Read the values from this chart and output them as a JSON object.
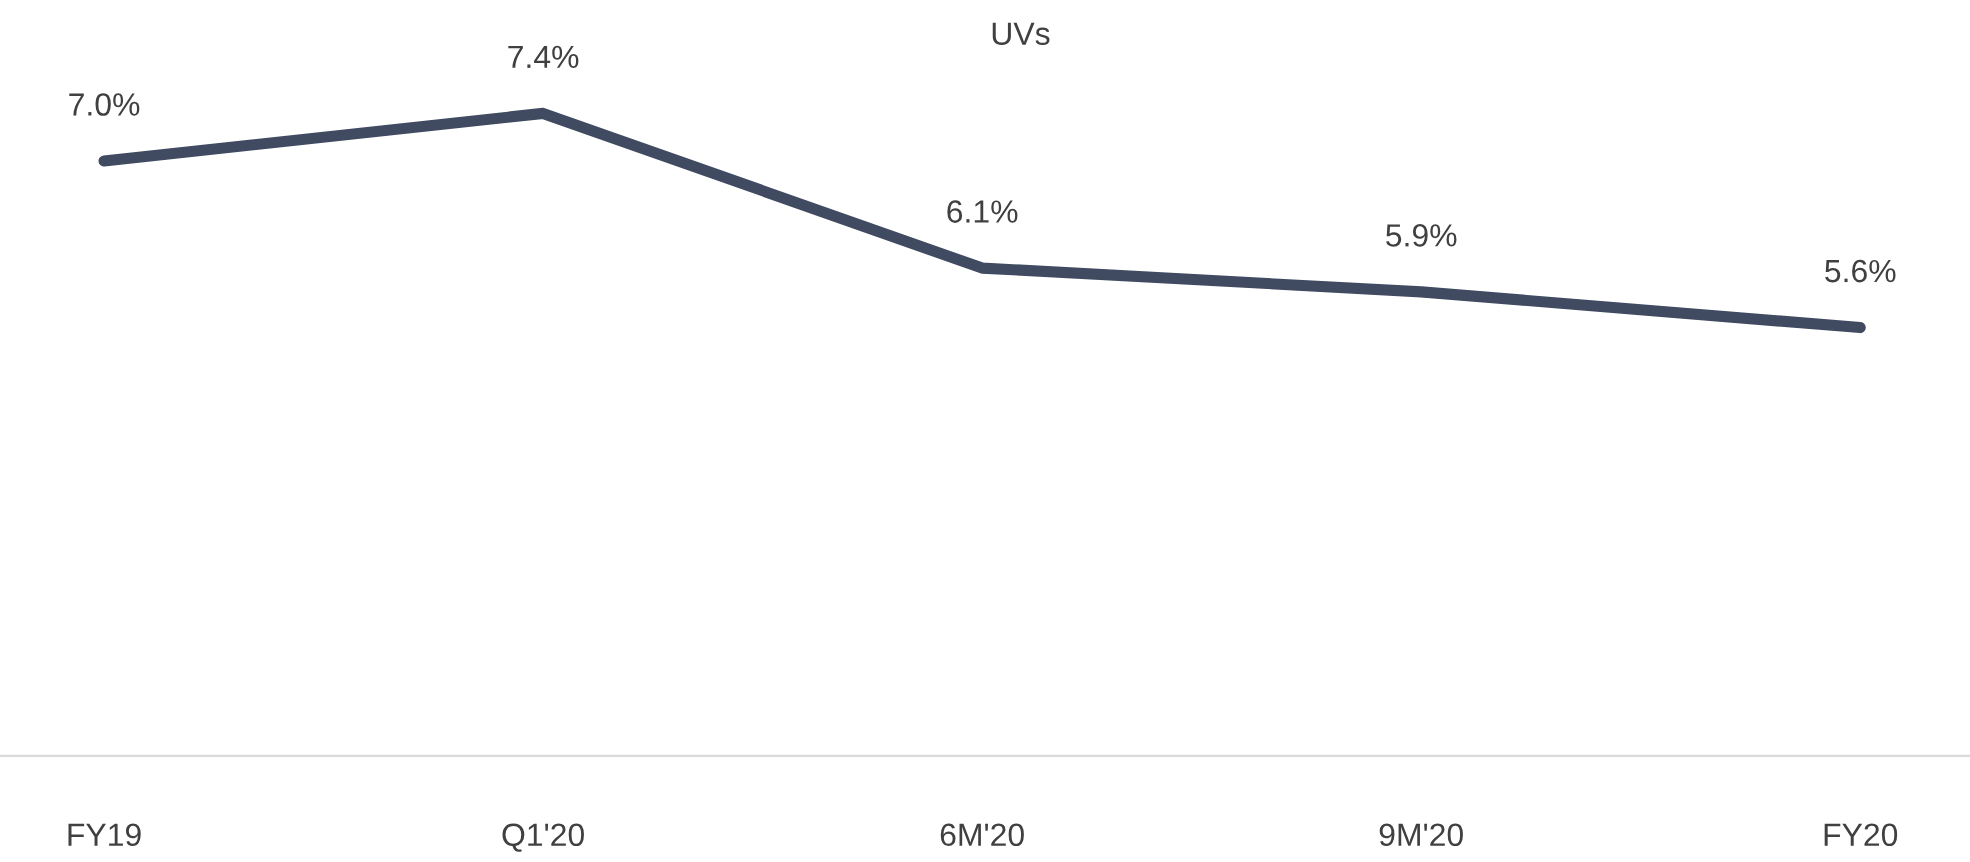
{
  "chart_data": {
    "type": "line",
    "title": "UVs",
    "categories": [
      "FY19",
      "Q1'20",
      "6M'20",
      "9M'20",
      "FY20"
    ],
    "series": [
      {
        "color": "#404a60",
        "values": [
          7.0,
          7.4,
          6.1,
          5.9,
          5.6
        ],
        "value_labels": [
          "7.0%",
          "7.4%",
          "6.1%",
          "5.9%",
          "5.6%"
        ]
      }
    ],
    "tick_labels": "x",
    "grid": false,
    "legend": false,
    "marker": "none",
    "line_style": "solid"
  }
}
